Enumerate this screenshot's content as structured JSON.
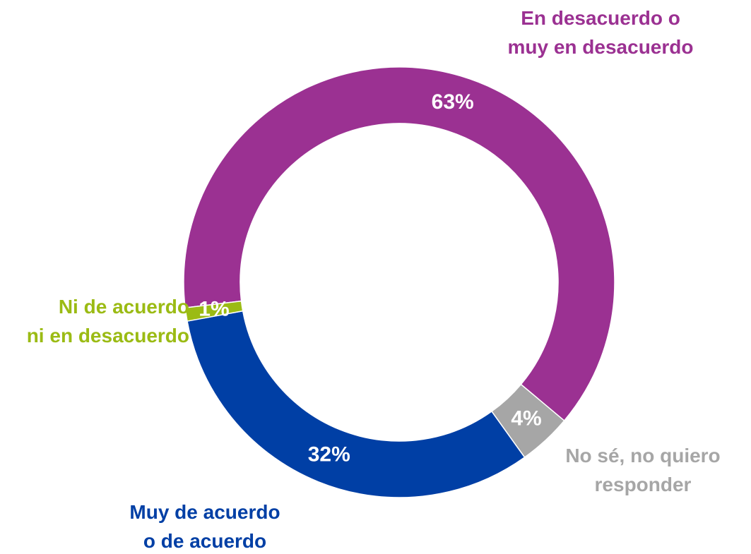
{
  "chart_data": {
    "type": "pie",
    "donut": true,
    "categories": [
      "En desacuerdo o\nmuy en desacuerdo",
      "No sé, no quiero\nresponder",
      "Muy de acuerdo\no de acuerdo",
      "Ni de acuerdo\nni en desacuerdo"
    ],
    "values": [
      63,
      4,
      32,
      1
    ],
    "value_labels": [
      "63%",
      "4%",
      "32%",
      "1%"
    ],
    "colors": [
      "#9b3192",
      "#a6a6a6",
      "#003fa5",
      "#9bbb14"
    ]
  }
}
